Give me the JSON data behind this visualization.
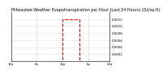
{
  "title": "Milwaukee Weather Evapotranspiration per Hour (Last 24 Hours) (Oz/sq ft)",
  "title_fontsize": 3.5,
  "x_hours": [
    0,
    1,
    2,
    3,
    4,
    5,
    6,
    7,
    8,
    9,
    10,
    11,
    12,
    13,
    14,
    15,
    16,
    17,
    18,
    19,
    20,
    21,
    22,
    23
  ],
  "y_values": [
    0,
    0,
    0,
    0,
    0,
    0,
    0,
    0,
    0,
    0,
    0,
    0,
    0.0012,
    0.0012,
    0.0012,
    0.0012,
    0,
    0,
    0,
    0,
    0,
    0,
    0,
    0
  ],
  "line_color": "#ff0000",
  "line_style": "dashed",
  "line_width": 0.8,
  "ylim": [
    0,
    0.0014
  ],
  "xlim": [
    0,
    23
  ],
  "ytick_values": [
    0.0002,
    0.0004,
    0.0006,
    0.0008,
    0.001,
    0.0012
  ],
  "ytick_labels": [
    "0.0002",
    "0.0004",
    "0.0006",
    "0.0008",
    "0.0010",
    "0.0012"
  ],
  "xtick_positions": [
    0,
    6,
    12,
    18,
    23
  ],
  "xtick_labels": [
    "12a",
    "6a",
    "12p",
    "6p",
    "12a"
  ],
  "grid_color": "#888888",
  "bg_color": "#ffffff",
  "tick_fontsize": 2.8
}
